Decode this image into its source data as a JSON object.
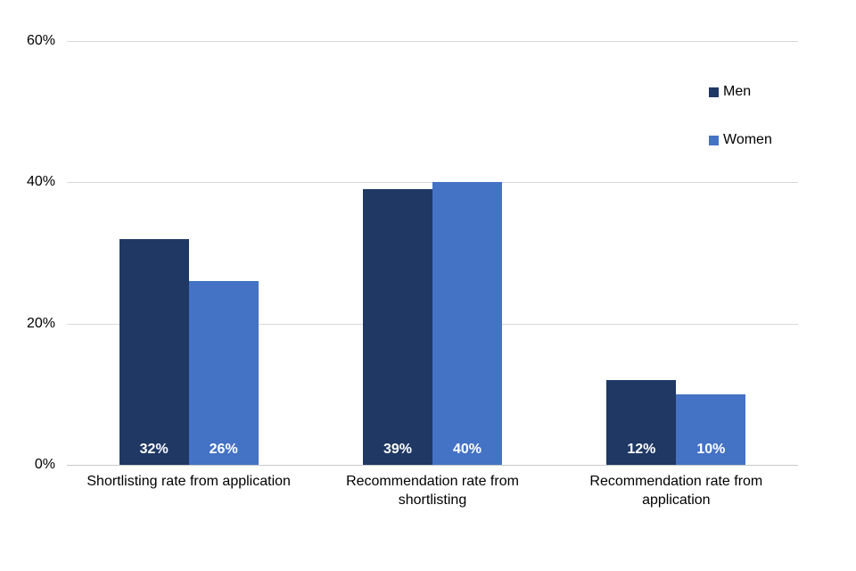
{
  "chart_data": {
    "type": "bar",
    "title": "",
    "xlabel": "",
    "ylabel": "",
    "categories": [
      "Shortlisting rate from application",
      "Recommendation rate from shortlisting",
      "Recommendation rate from application"
    ],
    "series": [
      {
        "name": "Men",
        "color": "#1F3864",
        "values": [
          32,
          39,
          12
        ],
        "labels": [
          "32%",
          "39%",
          "12%"
        ]
      },
      {
        "name": "Women",
        "color": "#4472C4",
        "values": [
          26,
          40,
          10
        ],
        "labels": [
          "26%",
          "40%",
          "10%"
        ]
      }
    ],
    "ylim": [
      0,
      60
    ],
    "yticks": [
      {
        "value": 0,
        "label": "0%"
      },
      {
        "value": 20,
        "label": "20%"
      },
      {
        "value": 40,
        "label": "40%"
      },
      {
        "value": 60,
        "label": "60%"
      }
    ],
    "grid": true,
    "legend_position": "top-right"
  },
  "colors": {
    "background": "#FFFFFF",
    "gridline": "#D9D9D9",
    "axis_line": "#C9C9C9",
    "axis_text": "#000000",
    "bar_label_text": "#FFFFFF"
  }
}
